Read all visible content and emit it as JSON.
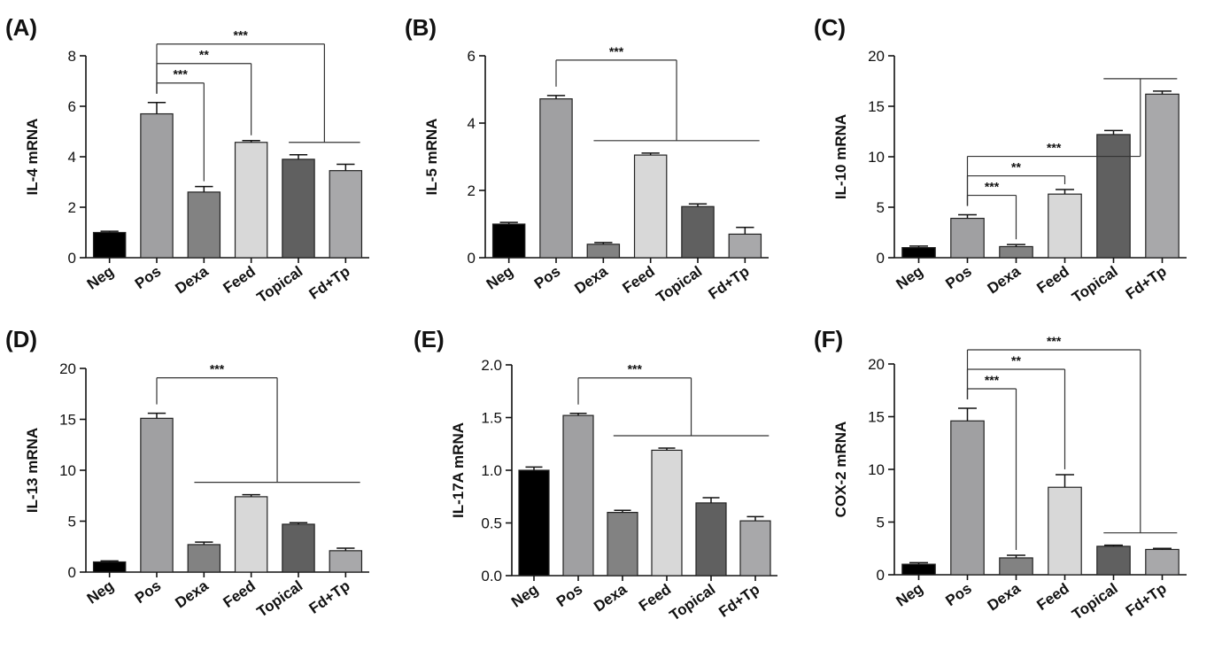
{
  "colors": {
    "Neg": "#000000",
    "Pos": "#a0a0a2",
    "Dexa": "#828282",
    "Feed": "#d8d8d8",
    "Topical": "#606060",
    "Fd+Tp": "#a8a8aa"
  },
  "chart_data": [
    {
      "type": "bar",
      "panel": "(A)",
      "categories": [
        "Neg",
        "Pos",
        "Dexa",
        "Feed",
        "Topical",
        "Fd+Tp"
      ],
      "values": [
        1.0,
        5.7,
        2.6,
        4.57,
        3.9,
        3.45
      ],
      "errors": [
        0.05,
        0.45,
        0.22,
        0.07,
        0.18,
        0.25
      ],
      "ylabel": "IL-4 mRNA",
      "ylim": [
        0,
        8
      ],
      "yticks": [
        "0",
        "2",
        "4",
        "6",
        "8"
      ],
      "significance": [
        {
          "label": "***",
          "from": "Pos",
          "to": "Dexa"
        },
        {
          "label": "**",
          "from": "Pos",
          "to": "Feed"
        },
        {
          "label": "***",
          "from": "Pos",
          "to": [
            "Topical",
            "Fd+Tp"
          ]
        }
      ]
    },
    {
      "type": "bar",
      "panel": "(B)",
      "categories": [
        "Neg",
        "Pos",
        "Dexa",
        "Feed",
        "Topical",
        "Fd+Tp"
      ],
      "values": [
        1.0,
        4.72,
        0.4,
        3.05,
        1.52,
        0.7
      ],
      "errors": [
        0.05,
        0.1,
        0.05,
        0.06,
        0.08,
        0.2
      ],
      "ylabel": "IL-5 mRNA",
      "ylim": [
        0,
        6
      ],
      "yticks": [
        "0",
        "2",
        "4",
        "6"
      ],
      "significance": [
        {
          "label": "***",
          "from": "Pos",
          "to": [
            "Dexa",
            "Feed",
            "Topical",
            "Fd+Tp"
          ]
        }
      ]
    },
    {
      "type": "bar",
      "panel": "(C)",
      "categories": [
        "Neg",
        "Pos",
        "Dexa",
        "Feed",
        "Topical",
        "Fd+Tp"
      ],
      "values": [
        1.0,
        3.9,
        1.1,
        6.3,
        12.2,
        16.2
      ],
      "errors": [
        0.15,
        0.35,
        0.2,
        0.45,
        0.4,
        0.3
      ],
      "ylabel": "IL-10 mRNA",
      "ylim": [
        0,
        20
      ],
      "yticks": [
        "0",
        "5",
        "10",
        "15",
        "20"
      ],
      "significance": [
        {
          "label": "***",
          "from": "Pos",
          "to": "Dexa"
        },
        {
          "label": "**",
          "from": "Pos",
          "to": "Feed"
        },
        {
          "label": "***",
          "from": "Pos",
          "to": [
            "Topical",
            "Fd+Tp"
          ]
        }
      ]
    },
    {
      "type": "bar",
      "panel": "(D)",
      "categories": [
        "Neg",
        "Pos",
        "Dexa",
        "Feed",
        "Topical",
        "Fd+Tp"
      ],
      "values": [
        1.0,
        15.1,
        2.7,
        7.4,
        4.7,
        2.1
      ],
      "errors": [
        0.1,
        0.5,
        0.25,
        0.2,
        0.15,
        0.25
      ],
      "ylabel": "IL-13 mRNA",
      "ylim": [
        0,
        20
      ],
      "yticks": [
        "0",
        "5",
        "10",
        "15",
        "20"
      ],
      "significance": [
        {
          "label": "***",
          "from": "Pos",
          "to": [
            "Dexa",
            "Feed",
            "Topical",
            "Fd+Tp"
          ]
        }
      ]
    },
    {
      "type": "bar",
      "panel": "(E)",
      "categories": [
        "Neg",
        "Pos",
        "Dexa",
        "Feed",
        "Topical",
        "Fd+Tp"
      ],
      "values": [
        1.0,
        1.52,
        0.6,
        1.19,
        0.69,
        0.52
      ],
      "errors": [
        0.03,
        0.02,
        0.02,
        0.02,
        0.05,
        0.04
      ],
      "ylabel": "IL-17A mRNA",
      "ylim": [
        0,
        2.0
      ],
      "yticks": [
        "0.0",
        "0.5",
        "1.0",
        "1.5",
        "2.0"
      ],
      "significance": [
        {
          "label": "***",
          "from": "Pos",
          "to": [
            "Dexa",
            "Feed",
            "Topical",
            "Fd+Tp"
          ]
        }
      ]
    },
    {
      "type": "bar",
      "panel": "(F)",
      "categories": [
        "Neg",
        "Pos",
        "Dexa",
        "Feed",
        "Topical",
        "Fd+Tp"
      ],
      "values": [
        1.0,
        14.6,
        1.6,
        8.3,
        2.7,
        2.4
      ],
      "errors": [
        0.15,
        1.2,
        0.25,
        1.2,
        0.1,
        0.1
      ],
      "ylabel": "COX-2 mRNA",
      "ylim": [
        0,
        20
      ],
      "yticks": [
        "0",
        "5",
        "10",
        "15",
        "20"
      ],
      "significance": [
        {
          "label": "***",
          "from": "Pos",
          "to": "Dexa"
        },
        {
          "label": "**",
          "from": "Pos",
          "to": "Feed"
        },
        {
          "label": "***",
          "from": "Pos",
          "to": [
            "Topical",
            "Fd+Tp"
          ]
        }
      ]
    }
  ]
}
